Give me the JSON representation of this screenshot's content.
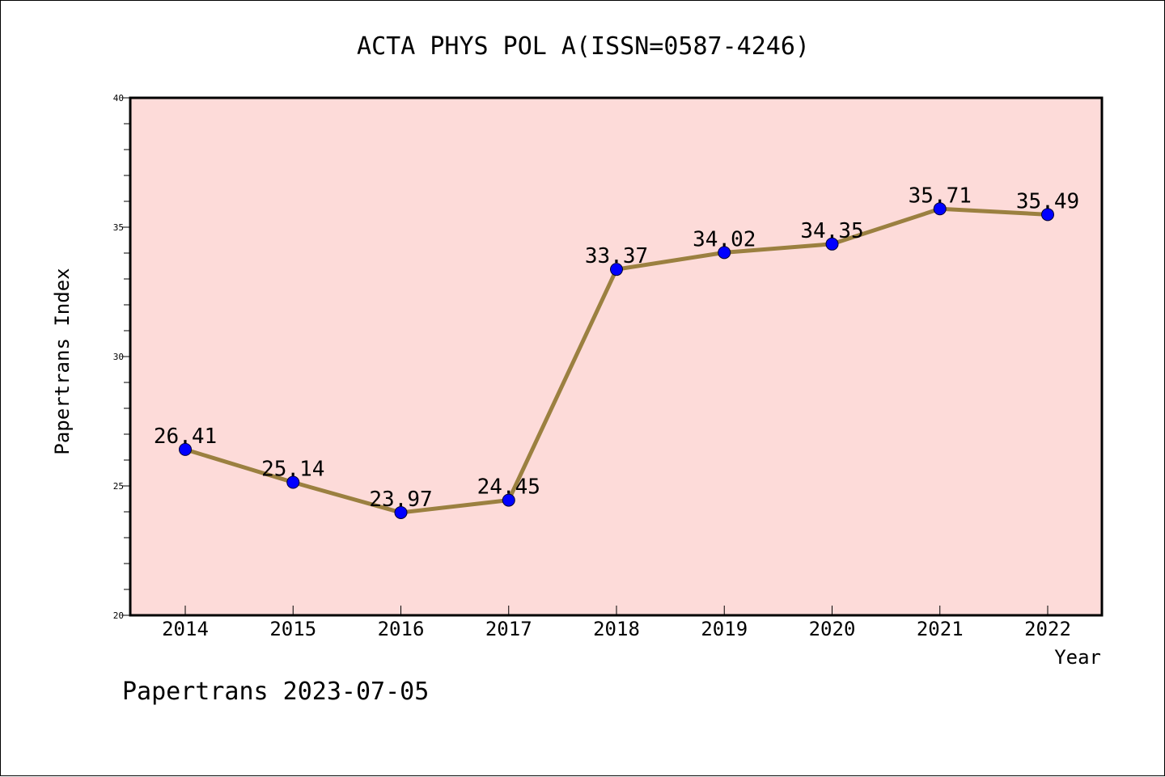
{
  "chart_data": {
    "type": "line",
    "title": "ACTA PHYS POL A(ISSN=0587-4246)",
    "xlabel": "Year",
    "ylabel": "Papertrans Index",
    "footer": "Papertrans 2023-07-05",
    "ylim": [
      20,
      40
    ],
    "yticks": [
      "20",
      "25",
      "30",
      "35",
      "40"
    ],
    "categories": [
      "2014",
      "2015",
      "2016",
      "2017",
      "2018",
      "2019",
      "2020",
      "2021",
      "2022"
    ],
    "values": [
      26.41,
      25.14,
      23.97,
      24.45,
      33.37,
      34.02,
      34.35,
      35.71,
      35.49
    ],
    "data_labels": [
      "26.41",
      "25.14",
      "23.97",
      "24.45",
      "33.37",
      "34.02",
      "34.35",
      "35.71",
      "35.49"
    ],
    "grid": false,
    "colors": {
      "plot_background": "#fddbd9",
      "line": "#9b8040",
      "marker": "#0000ff"
    }
  }
}
